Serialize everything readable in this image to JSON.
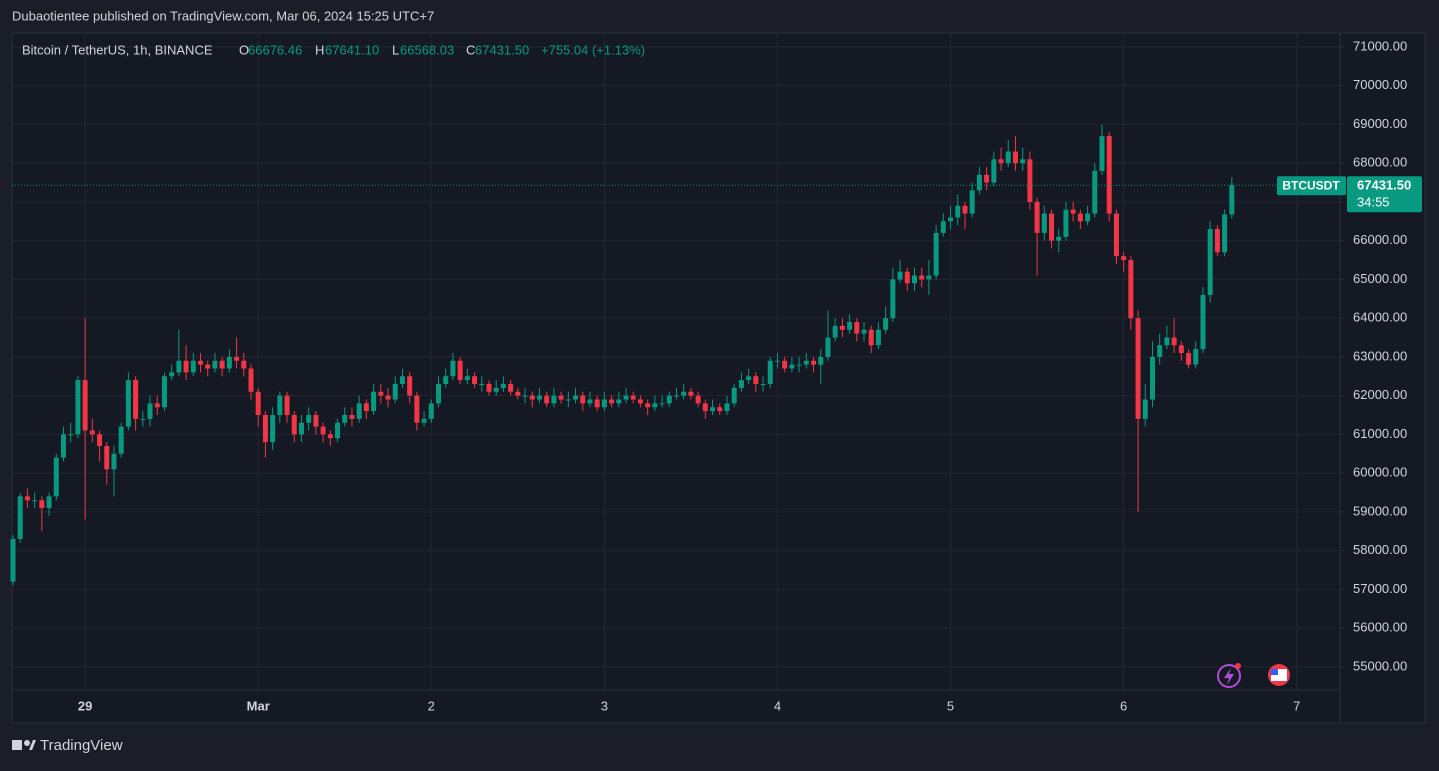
{
  "header": {
    "text": "Dubaotientee published on TradingView.com, Mar 06, 2024 15:25 UTC+7"
  },
  "footer": {
    "brand": "TradingView"
  },
  "chart_data": {
    "type": "candlestick",
    "title": "Bitcoin / TetherUS, 1h, BINANCE",
    "ohlc": {
      "o_label": "O",
      "o": 66676.46,
      "h_label": "H",
      "h": {
        "value": 67641.1,
        "label": "67641.10"
      },
      "l_label": "L",
      "l": 66568.03,
      "c_label": "C",
      "c": {
        "value": 67431.5,
        "label": "67431.50"
      },
      "change": "+755.04 (+1.13%)"
    },
    "last_price": {
      "symbol": "BTCUSDT",
      "value": 67431.5,
      "label": "67431.50",
      "countdown": "34:55"
    },
    "up_color": "#089981",
    "down_color": "#f23645",
    "grid": true,
    "xlim": [
      0,
      184
    ],
    "xticks": [
      {
        "value": 10,
        "label": "29"
      },
      {
        "value": 34,
        "label": "Mar"
      },
      {
        "value": 58,
        "label": "2"
      },
      {
        "value": 82,
        "label": "3"
      },
      {
        "value": 106,
        "label": "4"
      },
      {
        "value": 130,
        "label": "5"
      },
      {
        "value": 154,
        "label": "6"
      },
      {
        "value": 178,
        "label": "7"
      }
    ],
    "ylim": [
      53550,
      71360
    ],
    "yticks": [
      {
        "value": 55000,
        "label": "55000.00"
      },
      {
        "value": 56000,
        "label": "56000.00"
      },
      {
        "value": 57000,
        "label": "57000.00"
      },
      {
        "value": 58000,
        "label": "58000.00"
      },
      {
        "value": 59000,
        "label": "59000.00"
      },
      {
        "value": 60000,
        "label": "60000.00"
      },
      {
        "value": 61000,
        "label": "61000.00"
      },
      {
        "value": 62000,
        "label": "62000.00"
      },
      {
        "value": 63000,
        "label": "63000.00"
      },
      {
        "value": 64000,
        "label": "64000.00"
      },
      {
        "value": 65000,
        "label": "65000.00"
      },
      {
        "value": 66000,
        "label": "66000.00"
      },
      {
        "value": 67000,
        "label": "67000.00"
      },
      {
        "value": 68000,
        "label": "68000.00"
      },
      {
        "value": 69000,
        "label": "69000.00"
      },
      {
        "value": 70000,
        "label": "70000.00"
      },
      {
        "value": 71000,
        "label": "71000.00"
      }
    ],
    "open": [
      57200,
      58300,
      59400,
      59300,
      59300,
      59100,
      59400,
      60400,
      61000,
      61000,
      62400,
      61100,
      61000,
      60700,
      60100,
      60500,
      61200,
      62400,
      61400,
      61400,
      61800,
      61700,
      62500,
      62600,
      62900,
      62600,
      62900,
      62800,
      62700,
      62900,
      62700,
      63000,
      62900,
      62700,
      62100,
      61500,
      60800,
      61500,
      62000,
      61500,
      61000,
      61300,
      61500,
      61200,
      61000,
      60900,
      61300,
      61500,
      61400,
      61800,
      61600,
      62100,
      62000,
      61900,
      62300,
      62500,
      62000,
      61300,
      61400,
      61800,
      62300,
      62500,
      62900,
      62400,
      62500,
      62300,
      62300,
      62100,
      62200,
      62300,
      62100,
      62000,
      62000,
      61900,
      62000,
      61800,
      62000,
      61900,
      61900,
      62000,
      61800,
      61900,
      61700,
      61900,
      61800,
      61900,
      62000,
      61900,
      61800,
      61700,
      61800,
      61800,
      62000,
      62000,
      62100,
      62000,
      61800,
      61600,
      61700,
      61600,
      61800,
      62200,
      62400,
      62500,
      62300,
      62300,
      62900,
      62900,
      62700,
      62800,
      62800,
      62900,
      62800,
      63000,
      63500,
      63800,
      63700,
      63900,
      63600,
      63700,
      63300,
      63700,
      64000,
      65000,
      65200,
      64900,
      65100,
      65000,
      65100,
      66200,
      66500,
      66600,
      66900,
      66700,
      67300,
      67700,
      67500,
      68100,
      68000,
      68300,
      68000,
      68100,
      67000,
      66200,
      66700,
      66000,
      66100,
      66800,
      66700,
      66500,
      66700,
      67800,
      68700,
      66700,
      65600,
      65500,
      64000,
      61400,
      61900,
      63000,
      63300,
      63500,
      63300,
      63100,
      62800,
      63200,
      64600,
      66300,
      65700,
      66676.46
    ],
    "high": [
      58400,
      59500,
      59600,
      59500,
      59400,
      59500,
      60500,
      61200,
      61300,
      62500,
      64000,
      61400,
      61100,
      60800,
      60700,
      61300,
      62600,
      62500,
      61600,
      62000,
      62000,
      62600,
      62800,
      63700,
      63300,
      63100,
      63100,
      62900,
      63100,
      63000,
      63200,
      63500,
      63100,
      62800,
      62200,
      61600,
      61700,
      62100,
      62100,
      61600,
      61500,
      61700,
      61600,
      61300,
      61100,
      61400,
      61700,
      61700,
      62000,
      61900,
      62300,
      62300,
      62200,
      62500,
      62700,
      62600,
      62100,
      61600,
      61900,
      62500,
      62700,
      63100,
      63000,
      62700,
      62600,
      62500,
      62400,
      62400,
      62500,
      62400,
      62200,
      62200,
      62100,
      62200,
      62100,
      62200,
      62100,
      62100,
      62200,
      62100,
      62100,
      62000,
      62100,
      62000,
      62100,
      62200,
      62100,
      62000,
      61900,
      62000,
      62000,
      62100,
      62200,
      62300,
      62200,
      62100,
      61900,
      61900,
      61800,
      62000,
      62300,
      62600,
      62700,
      62600,
      62500,
      63000,
      63100,
      63000,
      63000,
      63000,
      63100,
      63000,
      63200,
      64200,
      64000,
      64000,
      64100,
      64000,
      63900,
      63800,
      63900,
      64300,
      65300,
      65500,
      65300,
      65300,
      65300,
      65500,
      66400,
      66700,
      66900,
      67200,
      67000,
      67500,
      67900,
      67900,
      68300,
      68400,
      68600,
      68700,
      68400,
      68300,
      67100,
      66900,
      66800,
      66300,
      67000,
      67000,
      66800,
      66900,
      68000,
      69000,
      68800,
      66800,
      65700,
      65600,
      64200,
      62300,
      63400,
      63600,
      63800,
      64000,
      63400,
      63200,
      63400,
      64800,
      66500,
      66400,
      66800,
      67641.1
    ],
    "low": [
      57100,
      58200,
      59100,
      59100,
      58500,
      58900,
      59300,
      60300,
      60800,
      60900,
      58800,
      60800,
      60300,
      59700,
      59400,
      60400,
      61100,
      61100,
      61200,
      61200,
      61500,
      61600,
      62400,
      62500,
      62400,
      62500,
      62600,
      62500,
      62600,
      62500,
      62600,
      62700,
      62500,
      61900,
      61200,
      60400,
      60600,
      61300,
      61300,
      60800,
      60800,
      61100,
      61000,
      60800,
      60700,
      60800,
      61200,
      61200,
      61300,
      61400,
      61500,
      61800,
      61700,
      61800,
      62200,
      61800,
      61100,
      61200,
      61300,
      61700,
      62200,
      62400,
      62300,
      62300,
      62200,
      62100,
      62000,
      62000,
      62100,
      62000,
      61900,
      61800,
      61700,
      61800,
      61700,
      61700,
      61800,
      61700,
      61800,
      61600,
      61700,
      61600,
      61600,
      61700,
      61700,
      61800,
      61800,
      61700,
      61500,
      61600,
      61700,
      61700,
      61900,
      61900,
      61900,
      61700,
      61400,
      61500,
      61500,
      61500,
      61700,
      62100,
      62300,
      62100,
      62100,
      62200,
      62700,
      62600,
      62600,
      62600,
      62700,
      62600,
      62300,
      62900,
      63400,
      63500,
      63600,
      63400,
      63400,
      63100,
      63200,
      63600,
      63900,
      64900,
      64700,
      64700,
      64800,
      64600,
      65000,
      66100,
      66300,
      66400,
      66300,
      66600,
      67200,
      67300,
      67400,
      67800,
      67900,
      67800,
      67800,
      66800,
      65100,
      66000,
      65800,
      65700,
      66000,
      66500,
      66300,
      66400,
      66600,
      67700,
      66500,
      65400,
      65200,
      63700,
      59000,
      61200,
      61700,
      62800,
      63200,
      63100,
      62900,
      62700,
      62700,
      63100,
      64400,
      65600,
      65600,
      66568.03
    ],
    "close": [
      58300,
      59400,
      59300,
      59300,
      59100,
      59400,
      60400,
      61000,
      61000,
      62400,
      61100,
      61000,
      60700,
      60100,
      60500,
      61200,
      62400,
      61400,
      61400,
      61800,
      61700,
      62500,
      62600,
      62900,
      62600,
      62900,
      62800,
      62700,
      62900,
      62700,
      63000,
      62900,
      62700,
      62100,
      61500,
      60800,
      61500,
      62000,
      61500,
      61000,
      61300,
      61500,
      61200,
      61000,
      60900,
      61300,
      61500,
      61400,
      61800,
      61600,
      62100,
      62000,
      61900,
      62300,
      62500,
      62000,
      61300,
      61400,
      61800,
      62300,
      62500,
      62900,
      62400,
      62500,
      62300,
      62300,
      62100,
      62200,
      62300,
      62100,
      62000,
      62000,
      61900,
      62000,
      61800,
      62000,
      61900,
      61900,
      62000,
      61800,
      61900,
      61700,
      61900,
      61800,
      61900,
      62000,
      61900,
      61800,
      61700,
      61800,
      61800,
      62000,
      62000,
      62100,
      62000,
      61800,
      61600,
      61700,
      61600,
      61800,
      62200,
      62400,
      62500,
      62300,
      62300,
      62900,
      62900,
      62700,
      62800,
      62800,
      62900,
      62800,
      63000,
      63500,
      63800,
      63700,
      63900,
      63600,
      63700,
      63300,
      63700,
      64000,
      65000,
      65200,
      64900,
      65100,
      65000,
      65100,
      66200,
      66500,
      66600,
      66900,
      66700,
      67300,
      67700,
      67500,
      68100,
      68000,
      68300,
      68000,
      68100,
      67000,
      66200,
      66700,
      66000,
      66100,
      66800,
      66700,
      66500,
      66700,
      67800,
      68700,
      66700,
      65600,
      65500,
      64000,
      61400,
      61900,
      63000,
      63300,
      63500,
      63300,
      63100,
      62800,
      63200,
      64600,
      66300,
      65700,
      66676.46,
      67431.5
    ]
  }
}
